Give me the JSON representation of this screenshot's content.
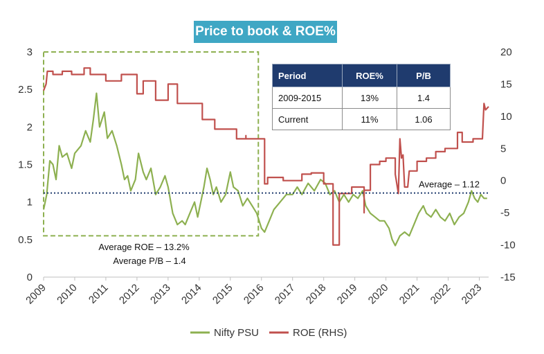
{
  "chart_data": {
    "type": "line",
    "title": "Price to book & ROE%",
    "x_tick_labels": [
      "2009",
      "2010",
      "2011",
      "2012",
      "2013",
      "2014",
      "2015",
      "2016",
      "2017",
      "2018",
      "2019",
      "2020",
      "2021",
      "2022",
      "2023"
    ],
    "xlim": [
      2009,
      2023.3
    ],
    "y_left": {
      "ylim": [
        0,
        3
      ],
      "ticks": [
        "0",
        "0.5",
        "1",
        "1.5",
        "2",
        "2.5",
        "3"
      ]
    },
    "y_right": {
      "ylim": [
        -15,
        20
      ],
      "ticks": [
        "-15",
        "-10",
        "-5",
        "0",
        "5",
        "10",
        "15",
        "20"
      ]
    },
    "series": [
      {
        "name": "Nifty PSU",
        "axis": "left",
        "color": "#8DB050",
        "points": [
          [
            2009.0,
            0.9
          ],
          [
            2009.1,
            1.1
          ],
          [
            2009.2,
            1.55
          ],
          [
            2009.3,
            1.5
          ],
          [
            2009.4,
            1.3
          ],
          [
            2009.5,
            1.75
          ],
          [
            2009.6,
            1.6
          ],
          [
            2009.75,
            1.65
          ],
          [
            2009.9,
            1.45
          ],
          [
            2010.0,
            1.65
          ],
          [
            2010.2,
            1.75
          ],
          [
            2010.35,
            1.95
          ],
          [
            2010.5,
            1.8
          ],
          [
            2010.6,
            2.1
          ],
          [
            2010.7,
            2.45
          ],
          [
            2010.8,
            2.0
          ],
          [
            2010.95,
            2.2
          ],
          [
            2011.05,
            1.85
          ],
          [
            2011.2,
            1.95
          ],
          [
            2011.35,
            1.75
          ],
          [
            2011.5,
            1.5
          ],
          [
            2011.6,
            1.3
          ],
          [
            2011.7,
            1.35
          ],
          [
            2011.8,
            1.15
          ],
          [
            2011.95,
            1.3
          ],
          [
            2012.05,
            1.65
          ],
          [
            2012.2,
            1.4
          ],
          [
            2012.3,
            1.3
          ],
          [
            2012.45,
            1.45
          ],
          [
            2012.6,
            1.1
          ],
          [
            2012.75,
            1.2
          ],
          [
            2012.9,
            1.35
          ],
          [
            2013.0,
            1.2
          ],
          [
            2013.15,
            0.85
          ],
          [
            2013.3,
            0.7
          ],
          [
            2013.45,
            0.75
          ],
          [
            2013.55,
            0.7
          ],
          [
            2013.7,
            0.85
          ],
          [
            2013.85,
            1.0
          ],
          [
            2013.95,
            0.8
          ],
          [
            2014.05,
            1.0
          ],
          [
            2014.15,
            1.2
          ],
          [
            2014.25,
            1.45
          ],
          [
            2014.35,
            1.3
          ],
          [
            2014.45,
            1.1
          ],
          [
            2014.55,
            1.2
          ],
          [
            2014.7,
            1.0
          ],
          [
            2014.85,
            1.1
          ],
          [
            2015.0,
            1.4
          ],
          [
            2015.1,
            1.2
          ],
          [
            2015.25,
            1.15
          ],
          [
            2015.4,
            0.95
          ],
          [
            2015.55,
            1.05
          ],
          [
            2015.7,
            0.95
          ],
          [
            2015.85,
            0.85
          ],
          [
            2016.0,
            0.65
          ],
          [
            2016.1,
            0.6
          ],
          [
            2016.25,
            0.75
          ],
          [
            2016.4,
            0.9
          ],
          [
            2016.6,
            1.0
          ],
          [
            2016.8,
            1.1
          ],
          [
            2017.0,
            1.1
          ],
          [
            2017.15,
            1.2
          ],
          [
            2017.3,
            1.1
          ],
          [
            2017.5,
            1.25
          ],
          [
            2017.7,
            1.15
          ],
          [
            2017.9,
            1.3
          ],
          [
            2018.05,
            1.25
          ],
          [
            2018.2,
            1.1
          ],
          [
            2018.35,
            1.15
          ],
          [
            2018.5,
            1.0
          ],
          [
            2018.65,
            1.1
          ],
          [
            2018.8,
            1.0
          ],
          [
            2018.95,
            1.1
          ],
          [
            2019.1,
            1.05
          ],
          [
            2019.25,
            1.15
          ],
          [
            2019.35,
            0.95
          ],
          [
            2019.5,
            0.85
          ],
          [
            2019.65,
            0.8
          ],
          [
            2019.8,
            0.75
          ],
          [
            2019.95,
            0.75
          ],
          [
            2020.1,
            0.65
          ],
          [
            2020.2,
            0.5
          ],
          [
            2020.3,
            0.42
          ],
          [
            2020.45,
            0.55
          ],
          [
            2020.6,
            0.6
          ],
          [
            2020.75,
            0.55
          ],
          [
            2020.9,
            0.7
          ],
          [
            2021.05,
            0.85
          ],
          [
            2021.2,
            0.95
          ],
          [
            2021.3,
            0.85
          ],
          [
            2021.45,
            0.8
          ],
          [
            2021.6,
            0.9
          ],
          [
            2021.75,
            0.8
          ],
          [
            2021.9,
            0.75
          ],
          [
            2022.05,
            0.85
          ],
          [
            2022.2,
            0.7
          ],
          [
            2022.35,
            0.8
          ],
          [
            2022.5,
            0.85
          ],
          [
            2022.65,
            1.0
          ],
          [
            2022.75,
            1.15
          ],
          [
            2022.85,
            1.05
          ],
          [
            2022.95,
            1.0
          ],
          [
            2023.05,
            1.1
          ],
          [
            2023.15,
            1.05
          ],
          [
            2023.25,
            1.05
          ]
        ]
      },
      {
        "name": "ROE (RHS)",
        "axis": "right",
        "color": "#C0504D",
        "points": [
          [
            2009.0,
            14
          ],
          [
            2009.08,
            15
          ],
          [
            2009.12,
            17
          ],
          [
            2009.3,
            17
          ],
          [
            2009.3,
            16.5
          ],
          [
            2009.6,
            16.5
          ],
          [
            2009.6,
            17
          ],
          [
            2009.9,
            17
          ],
          [
            2009.9,
            16.5
          ],
          [
            2010.3,
            16.5
          ],
          [
            2010.3,
            17.5
          ],
          [
            2010.5,
            17.5
          ],
          [
            2010.5,
            16.5
          ],
          [
            2011.0,
            16.5
          ],
          [
            2011.0,
            15.5
          ],
          [
            2011.5,
            15.5
          ],
          [
            2011.5,
            16.5
          ],
          [
            2012.0,
            16.5
          ],
          [
            2012.0,
            13.5
          ],
          [
            2012.2,
            13.5
          ],
          [
            2012.2,
            15.5
          ],
          [
            2012.6,
            15.5
          ],
          [
            2012.6,
            12.5
          ],
          [
            2013.0,
            12.5
          ],
          [
            2013.0,
            15
          ],
          [
            2013.3,
            15
          ],
          [
            2013.3,
            12
          ],
          [
            2014.1,
            12
          ],
          [
            2014.1,
            9.5
          ],
          [
            2014.5,
            9.5
          ],
          [
            2014.5,
            8
          ],
          [
            2015.2,
            8
          ],
          [
            2015.2,
            6.5
          ],
          [
            2015.5,
            6.5
          ],
          [
            2015.5,
            7
          ],
          [
            2015.5,
            6.5
          ],
          [
            2016.1,
            6.5
          ],
          [
            2016.1,
            -0.5
          ],
          [
            2016.2,
            -0.5
          ],
          [
            2016.2,
            0.5
          ],
          [
            2016.7,
            0.5
          ],
          [
            2016.7,
            0
          ],
          [
            2017.3,
            0
          ],
          [
            2017.3,
            1
          ],
          [
            2017.6,
            1
          ],
          [
            2017.6,
            1.2
          ],
          [
            2018.0,
            1.2
          ],
          [
            2018.0,
            -0.5
          ],
          [
            2018.3,
            -0.5
          ],
          [
            2018.3,
            -10
          ],
          [
            2018.5,
            -10
          ],
          [
            2018.5,
            -2
          ],
          [
            2018.9,
            -2
          ],
          [
            2018.9,
            -1
          ],
          [
            2019.3,
            -1
          ],
          [
            2019.3,
            -5
          ],
          [
            2019.3,
            -1.5
          ],
          [
            2019.5,
            -1.5
          ],
          [
            2019.5,
            2.5
          ],
          [
            2019.8,
            2.5
          ],
          [
            2019.8,
            3
          ],
          [
            2020.0,
            3
          ],
          [
            2020.0,
            3.5
          ],
          [
            2020.3,
            3.5
          ],
          [
            2020.3,
            1
          ],
          [
            2020.4,
            -2
          ],
          [
            2020.45,
            6.5
          ],
          [
            2020.5,
            3.5
          ],
          [
            2020.55,
            4
          ],
          [
            2020.6,
            -1
          ],
          [
            2020.7,
            -1
          ],
          [
            2020.75,
            1.5
          ],
          [
            2021.0,
            1.5
          ],
          [
            2021.0,
            3
          ],
          [
            2021.3,
            3
          ],
          [
            2021.3,
            3.5
          ],
          [
            2021.6,
            3.5
          ],
          [
            2021.6,
            4.5
          ],
          [
            2021.9,
            4.5
          ],
          [
            2021.9,
            5
          ],
          [
            2022.3,
            5
          ],
          [
            2022.3,
            7.5
          ],
          [
            2022.45,
            7.5
          ],
          [
            2022.45,
            6
          ],
          [
            2022.8,
            6
          ],
          [
            2022.8,
            6.5
          ],
          [
            2023.1,
            6.5
          ],
          [
            2023.15,
            12
          ],
          [
            2023.2,
            11
          ],
          [
            2023.3,
            11.5
          ]
        ]
      }
    ],
    "average_line": {
      "value": 1.12,
      "label": "Average – 1.12",
      "color": "#1F3B6E"
    },
    "highlight_box": {
      "x_range": [
        2009.0,
        2015.9
      ],
      "y_range": [
        0.55,
        3.0
      ],
      "color": "#8DB050"
    },
    "annotations": [
      "Average ROE – 13.2%",
      "Average P/B – 1.4"
    ],
    "legend": {
      "position": "bottom",
      "entries": [
        "Nifty PSU",
        "ROE (RHS)"
      ]
    }
  },
  "table": {
    "headers": [
      "Period",
      "ROE%",
      "P/B"
    ],
    "rows": [
      [
        "2009-2015",
        "13%",
        "1.4"
      ],
      [
        "Current",
        "11%",
        "1.06"
      ]
    ]
  }
}
